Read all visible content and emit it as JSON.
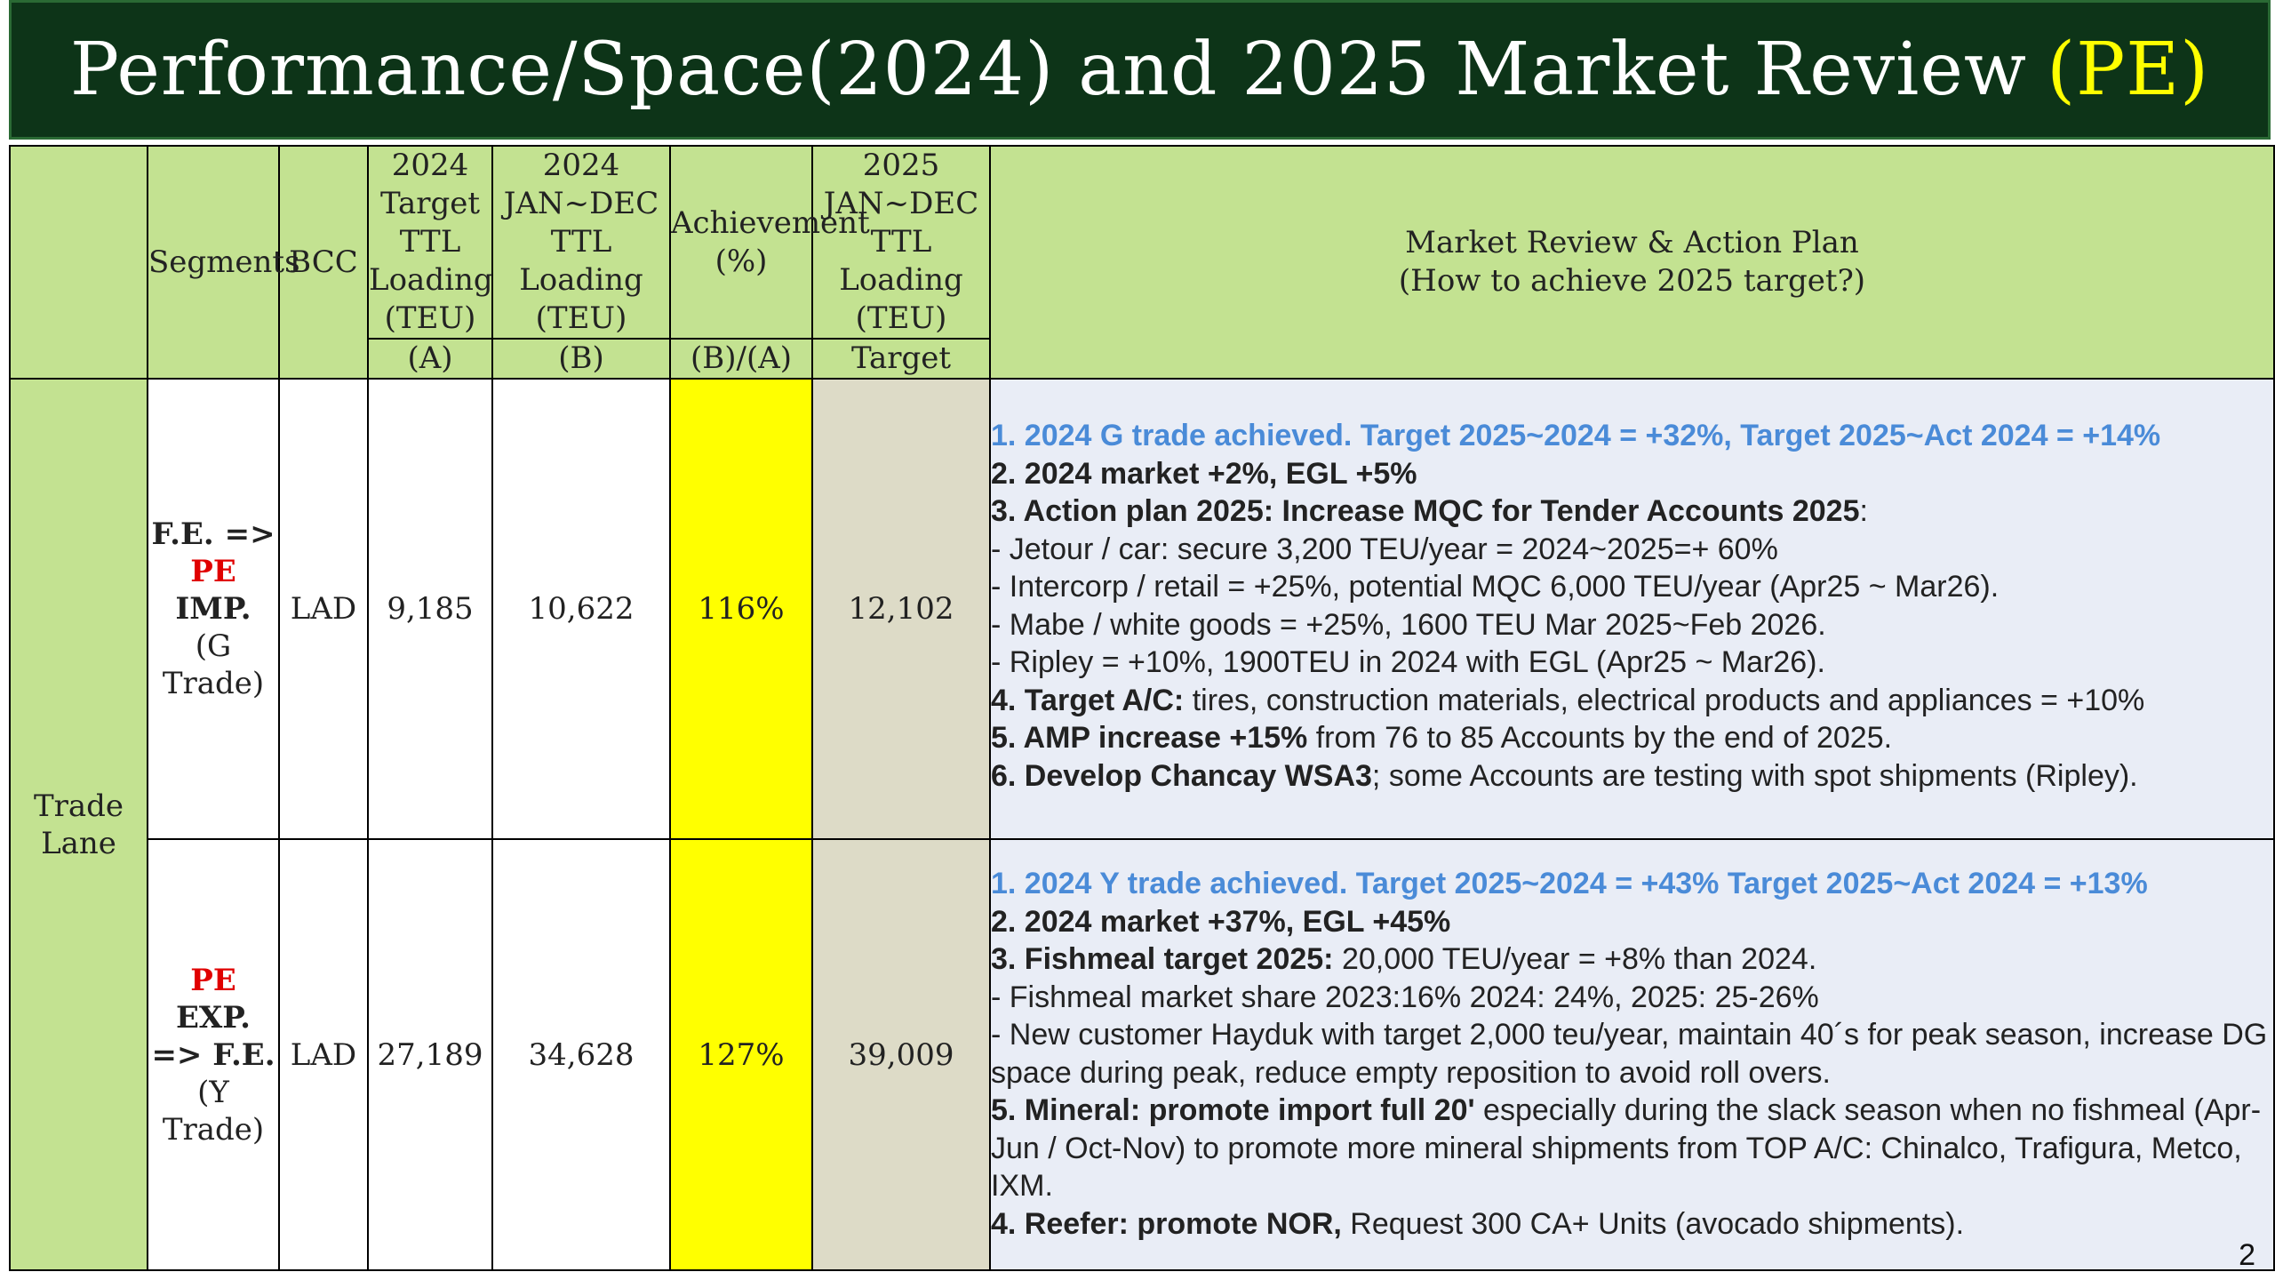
{
  "title": {
    "main": "Performance/Space(2024) and 2025 Market Review",
    "highlight": "(PE)"
  },
  "header": {
    "segments": "Segments",
    "bcc": "BCC",
    "target2024": "2024 Target TTL Loading (TEU)",
    "actual2024": "2024 JAN~DEC TTL Loading (TEU)",
    "achievement": "Achievement (%)",
    "loading2025": "2025 JAN~DEC TTL Loading (TEU)",
    "plan_line1": "Market Review & Action Plan",
    "plan_line2": "(How to achieve 2025 target?)",
    "sub_a": "(A)",
    "sub_b": "(B)",
    "sub_ba": "(B)/(A)",
    "sub_target": "Target"
  },
  "lane": "Trade Lane",
  "rows": [
    {
      "segment": {
        "l1a": "F.E. =>",
        "l2red": "PE",
        "l2b": " IMP.",
        "l3": "(G",
        "l4": "Trade)"
      },
      "bcc": "LAD",
      "target2024": "9,185",
      "actual2024": "10,622",
      "achievement": "116%",
      "target2025": "12,102",
      "plan": {
        "p1": "1.   2024 G trade achieved. Target 2025~2024 = +32%, Target 2025~Act 2024 = +14%",
        "p2": "2.   2024 market +2%, EGL +5%",
        "p3b": "3.   Action plan 2025: Increase MQC for Tender Accounts 2025",
        "p3n": ":",
        "b1": "-     Jetour / car: secure 3,200 TEU/year = 2024~2025=+ 60%",
        "b2": "-     Intercorp / retail = +25%, potential MQC 6,000 TEU/year (Apr25 ~ Mar26).",
        "b3": "-     Mabe / white goods = +25%, 1600 TEU Mar 2025~Feb 2026.",
        "b4": "-     Ripley = +10%, 1900TEU in 2024 with EGL (Apr25 ~ Mar26).",
        "p4b": "4.   Target A/C:",
        "p4n": " tires, construction materials, electrical products and appliances = +10%",
        "p5b": "5.   AMP increase +15%",
        "p5n": " from 76 to 85 Accounts by the end of 2025.",
        "p6b": "6.   Develop Chancay WSA3",
        "p6n": "; some Accounts are testing with spot shipments (Ripley)."
      }
    },
    {
      "segment": {
        "l1red": "PE",
        "l1b": " EXP.",
        "l2": "=> F.E.",
        "l3": "(Y",
        "l4": "Trade)"
      },
      "bcc": "LAD",
      "target2024": "27,189",
      "actual2024": "34,628",
      "achievement": "127%",
      "target2025": "39,009",
      "plan": {
        "p1": "1.   2024 Y trade achieved. Target 2025~2024 = +43% Target 2025~Act 2024 = +13%",
        "p2": "2.   2024 market +37%, EGL +45%",
        "p3b": "3.   Fishmeal target 2025:",
        "p3n": " 20,000 TEU/year = +8% than 2024.",
        "b1": "- Fishmeal market share 2023:16% 2024: 24%, 2025: 25-26%",
        "b2": "- New customer Hayduk with target 2,000 teu/year, maintain 40´s for peak season, increase DG space during peak, reduce empty reposition to avoid roll overs.",
        "p5b": "5.   Mineral: promote import full 20'",
        "p5n": " especially during the slack season when no fishmeal (Apr-Jun / Oct-Nov) to promote more mineral shipments from TOP A/C: Chinalco, Trafigura, Metco, IXM.",
        "p4b": "4.   Reefer: promote NOR,",
        "p4n": " Request 300 CA+ Units (avocado shipments)."
      }
    }
  ],
  "page_number": "2"
}
